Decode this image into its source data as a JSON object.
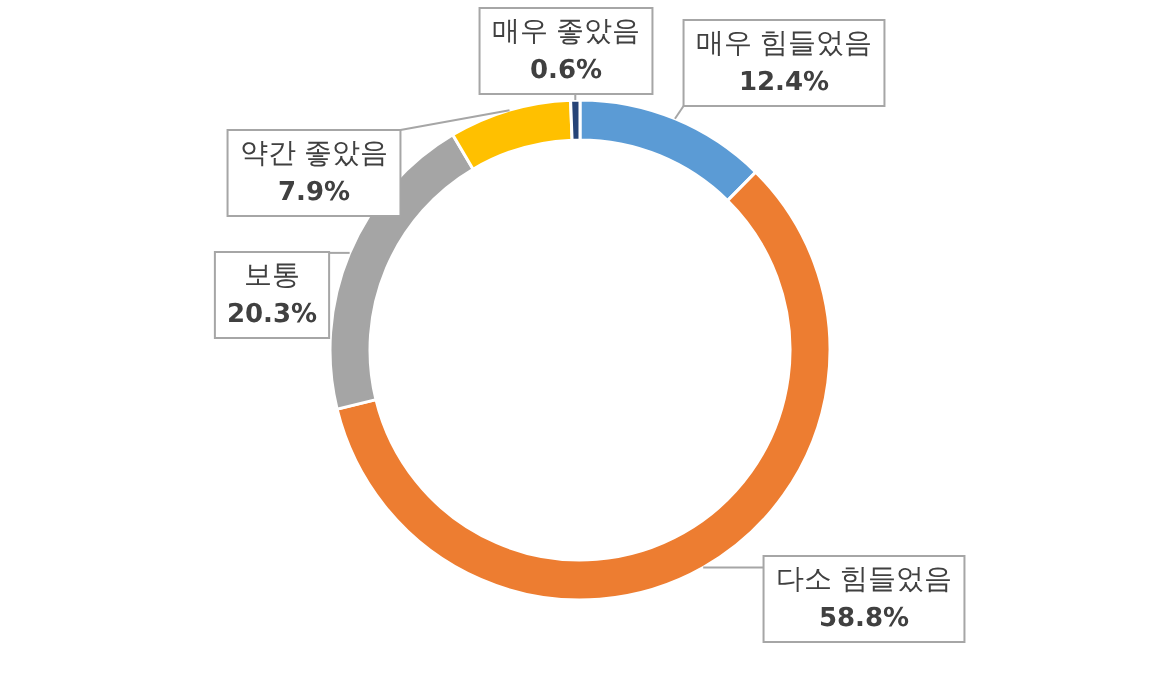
{
  "chart_data": {
    "type": "donut",
    "categories": [
      "매우 힘들었음",
      "다소 힘들었음",
      "보통",
      "약간 좋았음",
      "매우 좋았음"
    ],
    "values": [
      12.4,
      58.8,
      20.3,
      7.9,
      0.6
    ],
    "colors": [
      "#5b9bd5",
      "#ed7d31",
      "#a5a5a5",
      "#ffc000",
      "#264478"
    ],
    "value_labels": [
      "12.4%",
      "58.8%",
      "20.3%",
      "7.9%",
      "0.6%"
    ]
  }
}
